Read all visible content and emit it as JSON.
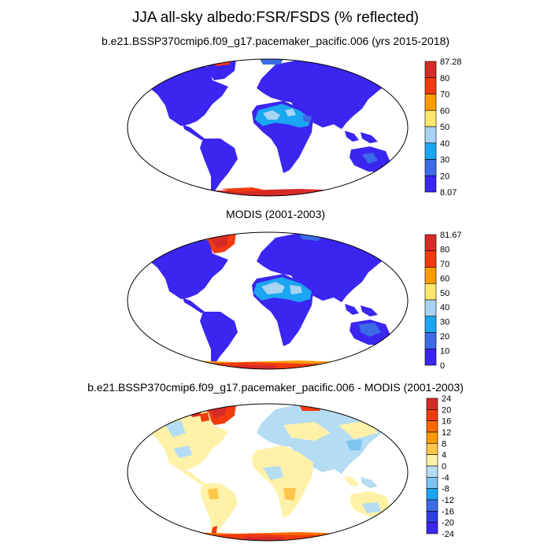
{
  "title": "JJA all-sky albedo:FSR/FSDS (% reflected)",
  "panels": [
    {
      "title": "b.e21.BSSP370cmip6.f09_g17.pacemaker_pacific.006 (yrs 2015-2018)",
      "colorbar": {
        "labels": [
          "87.28",
          "80",
          "70",
          "60",
          "50",
          "40",
          "30",
          "20",
          "8.07"
        ],
        "colors": [
          "#d62a27",
          "#f23a10",
          "#ff9a00",
          "#ffe76b",
          "#a6d4f2",
          "#1aa6f2",
          "#3b6be6",
          "#3b25f0"
        ]
      }
    },
    {
      "title": "MODIS (2001-2003)",
      "colorbar": {
        "labels": [
          "81.67",
          "80",
          "70",
          "60",
          "50",
          "40",
          "30",
          "20",
          "10",
          "0"
        ],
        "colors": [
          "#d62a27",
          "#f23a10",
          "#ff9a00",
          "#ffe76b",
          "#a6d4f2",
          "#1aa6f2",
          "#3b6be6",
          "#3b25f0"
        ]
      }
    },
    {
      "title": "b.e21.BSSP370cmip6.f09_g17.pacemaker_pacific.006 - MODIS (2001-2003)",
      "colorbar": {
        "labels": [
          "24",
          "20",
          "16",
          "12",
          "8",
          "4",
          "0",
          "-4",
          "-8",
          "-12",
          "-16",
          "-20",
          "-24"
        ],
        "colors": [
          "#d62a27",
          "#f23a10",
          "#ff6a00",
          "#ff9a00",
          "#ffc64a",
          "#fff2a8",
          "#b4dcf2",
          "#7cc4f2",
          "#1aa6f2",
          "#3b6be6",
          "#2e3ee6",
          "#3b25f0"
        ]
      }
    }
  ],
  "colors": {
    "land_base": "#3b25f0",
    "ocean": "#ffffff",
    "outline": "#000000"
  }
}
